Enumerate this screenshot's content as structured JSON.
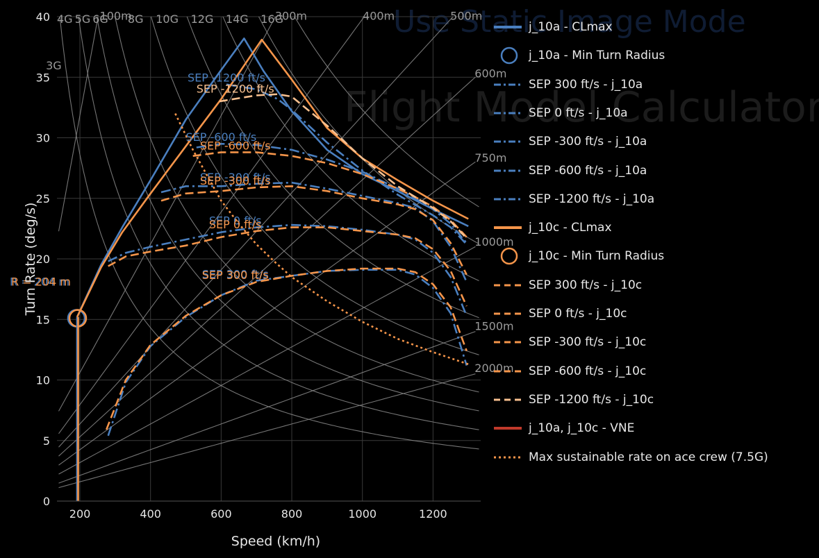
{
  "watermark": {
    "title": "Use Static Image Mode",
    "subtitle": "Flight Model Calculator"
  },
  "colors": {
    "background": "#000000",
    "grid": "#3a3a3a",
    "ref": "#8a8a8a",
    "j_10a": "#4a7fbf",
    "j_10c": "#f5954a",
    "vne": "#c0392b"
  },
  "chart_data": {
    "type": "line",
    "xlabel": "Speed (km/h)",
    "ylabel": "Turn Rate (deg/s)",
    "xlim": [
      135,
      1335
    ],
    "ylim": [
      0,
      40
    ],
    "xticks": [
      200,
      400,
      600,
      800,
      1000,
      1200
    ],
    "yticks": [
      0,
      5,
      10,
      15,
      20,
      25,
      30,
      35,
      40
    ],
    "grid": true,
    "legend_position": "right",
    "g_lines": [
      {
        "label": "3G",
        "g": 3
      },
      {
        "label": "4G",
        "g": 4
      },
      {
        "label": "5G",
        "g": 5
      },
      {
        "label": "6G",
        "g": 6
      },
      {
        "label": "8G",
        "g": 8
      },
      {
        "label": "10G",
        "g": 10
      },
      {
        "label": "12G",
        "g": 12
      },
      {
        "label": "14G",
        "g": 14
      },
      {
        "label": "16G",
        "g": 16
      }
    ],
    "radius_lines": [
      {
        "label": "100m",
        "r": 100
      },
      {
        "label": "300m",
        "r": 300
      },
      {
        "label": "400m",
        "r": 400
      },
      {
        "label": "500m",
        "r": 500
      },
      {
        "label": "600m",
        "r": 600
      },
      {
        "label": "750m",
        "r": 750
      },
      {
        "label": "1000m",
        "r": 1000
      },
      {
        "label": "1500m",
        "r": 1500
      },
      {
        "label": "2000m",
        "r": 2000
      }
    ],
    "series": [
      {
        "name": "j_10a - CLmax",
        "color": "#4a7fbf",
        "dash": "solid",
        "x": [
          192,
          260,
          320,
          400,
          500,
          600,
          665,
          720,
          800,
          900,
          1000,
          1100,
          1200,
          1300
        ],
        "y": [
          15.2,
          19.5,
          22.6,
          26.5,
          31.5,
          35.6,
          38.2,
          35.5,
          32.2,
          29.0,
          27.0,
          25.6,
          24.1,
          22.7
        ]
      },
      {
        "name": "j_10a - Min Turn Radius",
        "color": "#4a7fbf",
        "marker": "circle",
        "x": [
          190
        ],
        "y": [
          15.1
        ],
        "annotation": "R = 204 m"
      },
      {
        "name": "SEP 300 ft/s - j_10a",
        "color": "#4a7fbf",
        "dash": "dashdot",
        "label": "SEP 300 ft/s",
        "x": [
          280,
          330,
          400,
          500,
          600,
          700,
          800,
          900,
          1000,
          1100,
          1150,
          1200,
          1250,
          1295
        ],
        "y": [
          5.4,
          9.8,
          12.8,
          15.2,
          17.0,
          18.2,
          18.6,
          19.0,
          19.1,
          19.1,
          18.7,
          17.6,
          15.5,
          11.2
        ]
      },
      {
        "name": "SEP 0 ft/s - j_10a",
        "color": "#4a7fbf",
        "dash": "dashdot",
        "label": "SEP 0 ft/s",
        "x": [
          280,
          330,
          400,
          500,
          600,
          700,
          800,
          900,
          1000,
          1100,
          1150,
          1200,
          1250,
          1295
        ],
        "y": [
          19.8,
          20.5,
          21.0,
          21.6,
          22.2,
          22.6,
          22.8,
          22.7,
          22.4,
          22.0,
          21.6,
          20.5,
          18.5,
          15.3
        ]
      },
      {
        "name": "SEP -300 ft/s - j_10a",
        "color": "#4a7fbf",
        "dash": "dashdot",
        "label": "SEP -300 ft/s",
        "x": [
          430,
          500,
          600,
          700,
          800,
          900,
          1000,
          1100,
          1150,
          1200,
          1250,
          1295
        ],
        "y": [
          25.5,
          26.0,
          26.0,
          26.2,
          26.3,
          25.8,
          25.2,
          24.6,
          24.2,
          23.1,
          21.0,
          18.1
        ]
      },
      {
        "name": "SEP -600 ft/s - j_10a",
        "color": "#4a7fbf",
        "dash": "dashdot",
        "label": "SEP -600 ft/s",
        "x": [
          530,
          600,
          700,
          800,
          900,
          1000,
          1100,
          1150,
          1200,
          1250,
          1295
        ],
        "y": [
          29.2,
          29.5,
          29.4,
          29.0,
          28.2,
          27.2,
          25.8,
          25.0,
          24.1,
          22.9,
          21.3
        ]
      },
      {
        "name": "SEP -1200 ft/s - j_10a",
        "color": "#4a7fbf",
        "dash": "dashdot",
        "label": "SEP -1200 ft/s",
        "x": [
          615,
          700,
          760,
          800,
          900,
          1000,
          1100,
          1200,
          1250,
          1295
        ],
        "y": [
          34.4,
          34.0,
          33.2,
          32.3,
          29.6,
          27.3,
          25.3,
          23.6,
          22.6,
          21.2
        ]
      },
      {
        "name": "j_10c - CLmax",
        "color": "#f5954a",
        "dash": "solid",
        "x": [
          192,
          260,
          320,
          400,
          500,
          600,
          715,
          800,
          900,
          1000,
          1100,
          1200,
          1300
        ],
        "y": [
          15.2,
          19.3,
          22.2,
          25.4,
          29.3,
          33.2,
          38.1,
          34.8,
          30.8,
          28.3,
          26.5,
          24.8,
          23.3
        ]
      },
      {
        "name": "j_10c - Min Turn Radius",
        "color": "#f5954a",
        "marker": "circle",
        "x": [
          194
        ],
        "y": [
          15.1
        ],
        "annotation": "R = 204 m"
      },
      {
        "name": "SEP 300 ft/s - j_10c",
        "color": "#f5954a",
        "dash": "dash",
        "label": "SEP 300 ft/s",
        "x": [
          275,
          330,
          400,
          500,
          600,
          700,
          800,
          900,
          1000,
          1100,
          1150,
          1200,
          1250,
          1295
        ],
        "y": [
          5.9,
          10.0,
          12.9,
          15.3,
          17.0,
          18.1,
          18.6,
          19.0,
          19.2,
          19.2,
          18.9,
          17.9,
          16.0,
          12.4
        ]
      },
      {
        "name": "SEP 0 ft/s - j_10c",
        "color": "#f5954a",
        "dash": "dash",
        "label": "SEP 0 ft/s",
        "x": [
          280,
          330,
          400,
          500,
          600,
          700,
          800,
          900,
          1000,
          1100,
          1150,
          1200,
          1250,
          1295
        ],
        "y": [
          19.4,
          20.2,
          20.6,
          21.1,
          21.8,
          22.3,
          22.6,
          22.6,
          22.3,
          22.0,
          21.7,
          20.8,
          19.0,
          16.1
        ]
      },
      {
        "name": "SEP -300 ft/s - j_10c",
        "color": "#f5954a",
        "dash": "dash",
        "label": "SEP -300 ft/s",
        "x": [
          430,
          500,
          600,
          700,
          800,
          900,
          1000,
          1100,
          1150,
          1200,
          1250,
          1295
        ],
        "y": [
          24.8,
          25.4,
          25.6,
          25.9,
          26.0,
          25.6,
          25.0,
          24.5,
          24.1,
          23.2,
          21.3,
          18.7
        ]
      },
      {
        "name": "SEP -600 ft/s - j_10c",
        "color": "#f5954a",
        "dash": "dash",
        "label": "SEP -600 ft/s",
        "x": [
          520,
          600,
          700,
          800,
          900,
          1000,
          1100,
          1150,
          1200,
          1250,
          1295
        ],
        "y": [
          28.5,
          28.8,
          28.8,
          28.5,
          27.9,
          27.0,
          25.8,
          25.1,
          24.3,
          23.2,
          21.8
        ]
      },
      {
        "name": "SEP -1200 ft/s - j_10c",
        "color": "#f8c08f",
        "dash": "dash",
        "label": "SEP -1200 ft/s",
        "x": [
          595,
          700,
          760,
          800,
          900,
          1000,
          1100,
          1200,
          1250,
          1295
        ],
        "y": [
          33.0,
          33.5,
          33.6,
          33.4,
          31.0,
          28.3,
          26.0,
          24.2,
          23.1,
          21.7
        ]
      },
      {
        "name": "j_10a, j_10c - VNE",
        "color": "#c0392b",
        "dash": "solid",
        "x": [],
        "y": []
      },
      {
        "name": "Max sustainable rate on ace crew (7.5G)",
        "color": "#f5954a",
        "dash": "dot",
        "x": [
          470,
          520,
          560,
          600,
          650,
          700,
          750,
          800,
          900,
          1000,
          1100,
          1200,
          1300
        ],
        "y": [
          32.0,
          29.0,
          26.9,
          24.8,
          22.9,
          21.2,
          19.8,
          18.5,
          16.5,
          14.8,
          13.4,
          12.3,
          11.3
        ]
      }
    ],
    "vertical_lines": [
      {
        "x": 192,
        "y0": 0,
        "y1": 15.2,
        "color": "#4a7fbf"
      },
      {
        "x": 195,
        "y0": 0,
        "y1": 15.2,
        "color": "#f5954a"
      }
    ]
  }
}
